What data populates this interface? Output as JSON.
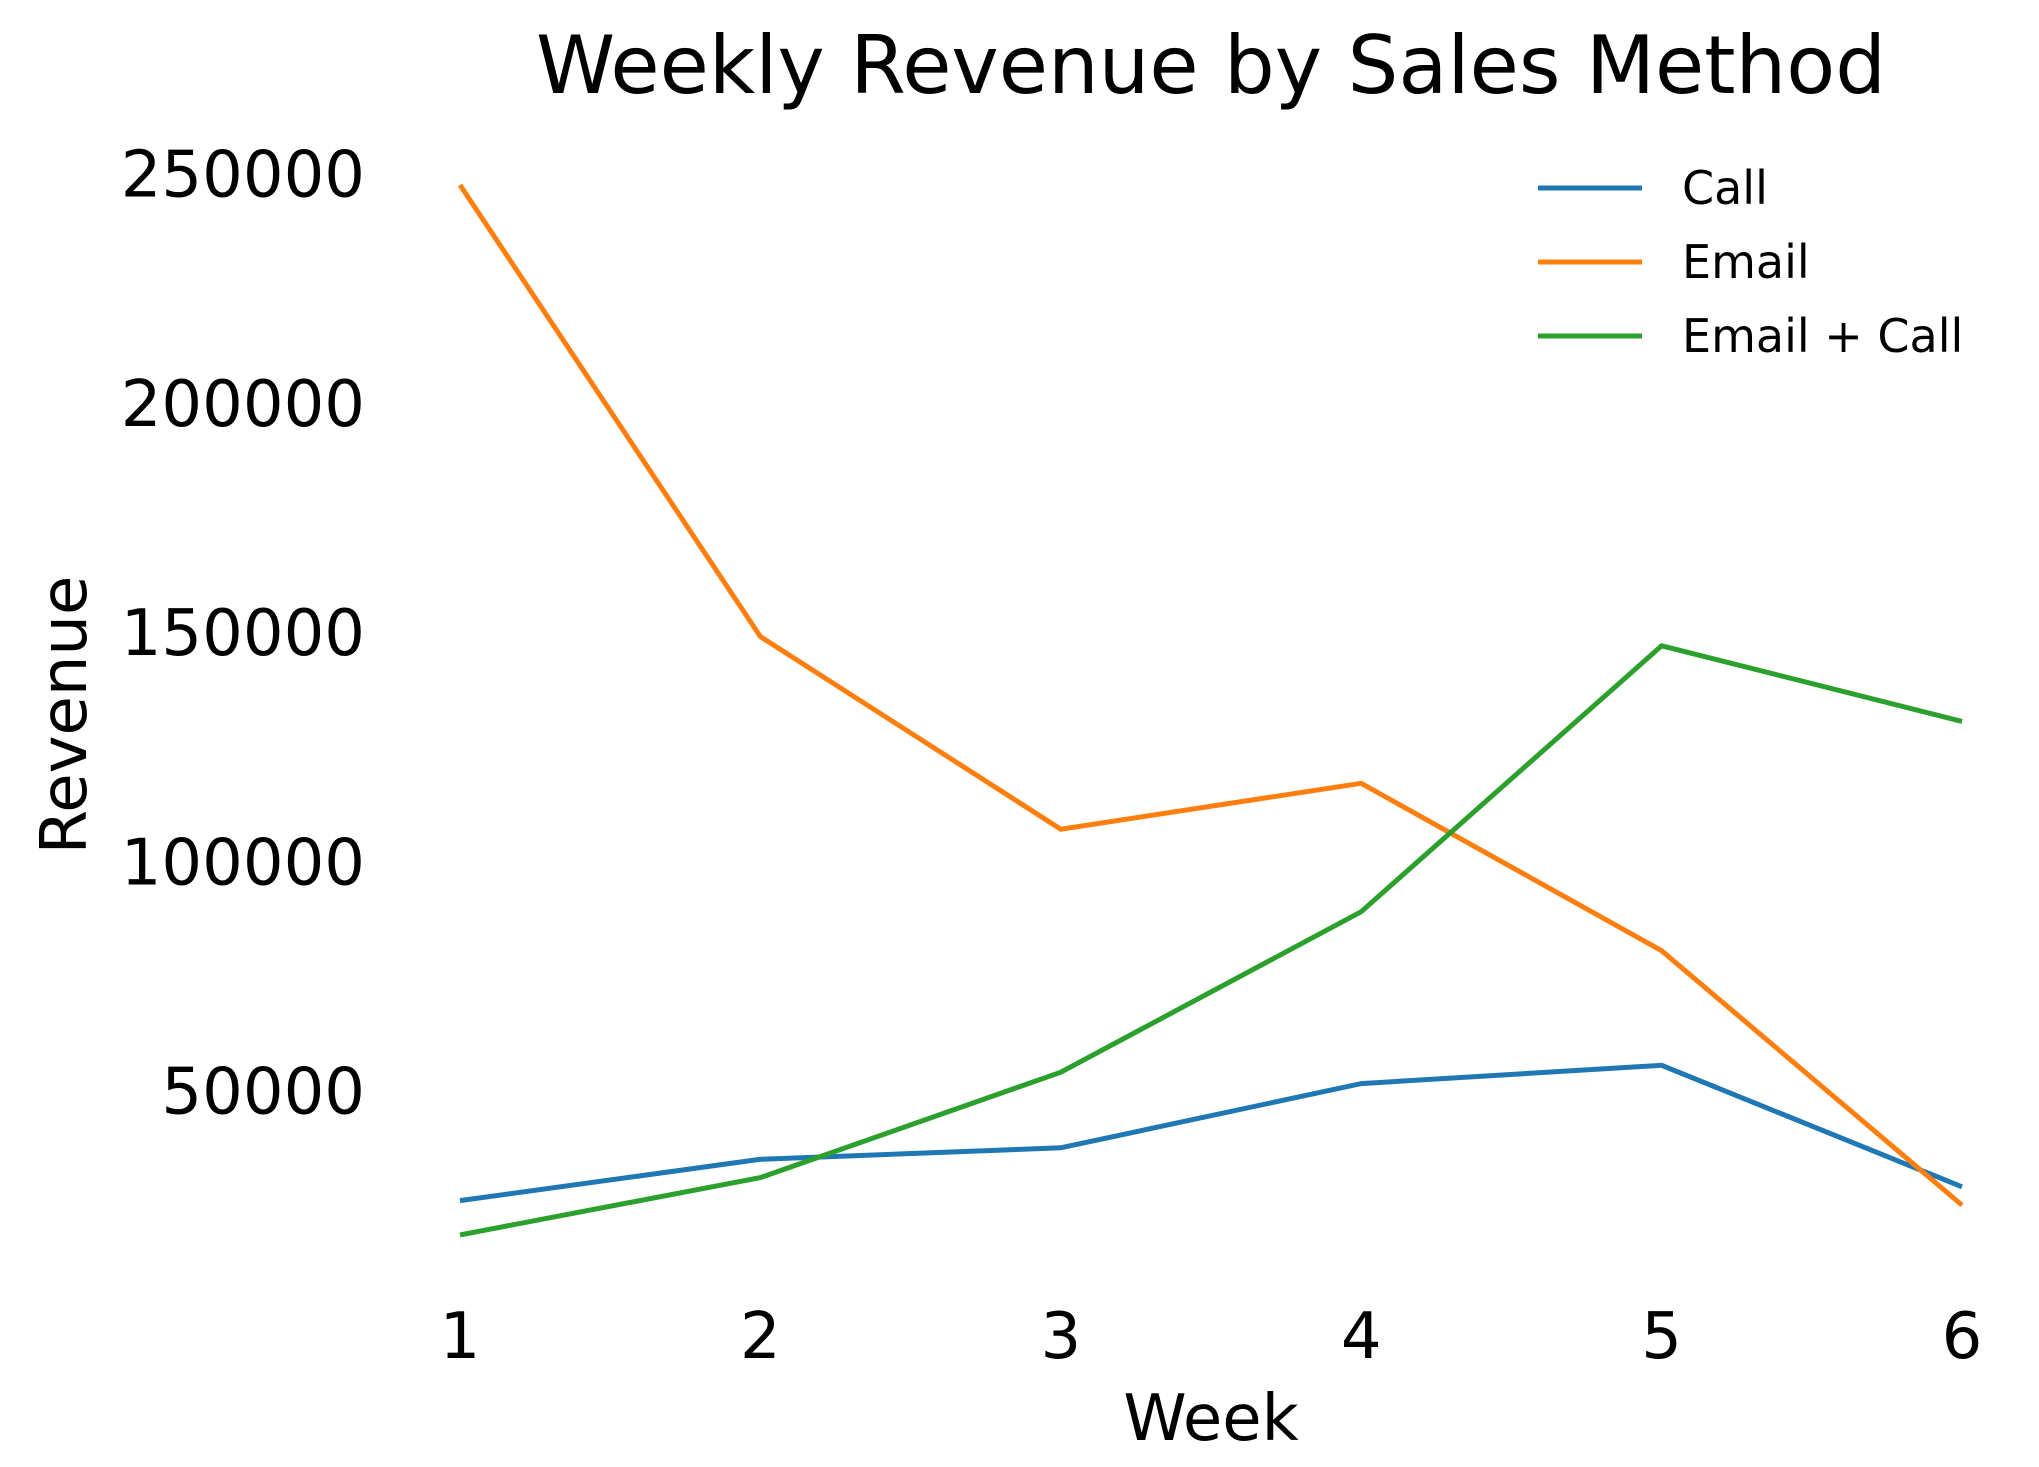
{
  "chart_data": {
    "type": "line",
    "title": "Weekly Revenue by Sales Method",
    "xlabel": "Week",
    "ylabel": "Revenue",
    "x": [
      1,
      2,
      3,
      4,
      5,
      6
    ],
    "xticks": [
      "1",
      "2",
      "3",
      "4",
      "5",
      "6"
    ],
    "yticks": [
      50000,
      100000,
      150000,
      200000,
      250000
    ],
    "ytick_labels": [
      "50000",
      "100000",
      "150000",
      "200000",
      "250000"
    ],
    "xlim": [
      1,
      6
    ],
    "ylim": [
      5400,
      259500
    ],
    "grid": false,
    "legend": "top-right",
    "series": [
      {
        "name": "Call",
        "color": "#1f77b4",
        "values": [
          26000,
          35000,
          37500,
          51500,
          55500,
          29000
        ]
      },
      {
        "name": "Email",
        "color": "#ff7f0e",
        "values": [
          247500,
          149000,
          107000,
          117000,
          80500,
          25000
        ]
      },
      {
        "name": "Email + Call",
        "color": "#2ca02c",
        "values": [
          18500,
          31000,
          54000,
          89000,
          147000,
          130500
        ]
      }
    ]
  }
}
